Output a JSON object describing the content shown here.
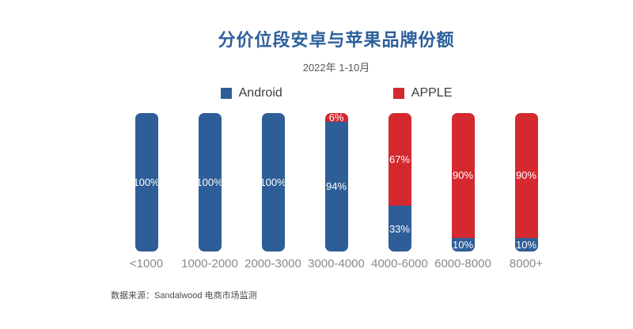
{
  "header": {
    "title": "分价位段安卓与苹果品牌份额",
    "subtitle": "2022年 1-10月"
  },
  "legend": [
    {
      "label": "Android",
      "color": "#2e5e97"
    },
    {
      "label": "APPLE",
      "color": "#d4292f"
    }
  ],
  "chart_data": {
    "type": "bar",
    "stacked": true,
    "orientation": "vertical",
    "unit": "%",
    "title": "分价位段安卓与苹果品牌份额",
    "subtitle": "2022年 1-10月",
    "categories": [
      "<1000",
      "1000-2000",
      "2000-3000",
      "3000-4000",
      "4000-6000",
      "6000-8000",
      "8000+"
    ],
    "series": [
      {
        "name": "Android",
        "color": "#2e5e97",
        "values": [
          100,
          100,
          100,
          94,
          33,
          10,
          10
        ]
      },
      {
        "name": "APPLE",
        "color": "#d4292f",
        "values": [
          0,
          0,
          0,
          6,
          67,
          90,
          90
        ]
      }
    ],
    "xlabel": "",
    "ylabel": "",
    "ylim": [
      0,
      100
    ],
    "grid": false,
    "legend_position": "top",
    "data_labels": true
  },
  "footer": {
    "source": "数据来源：Sandalwood 电商市场监测"
  }
}
